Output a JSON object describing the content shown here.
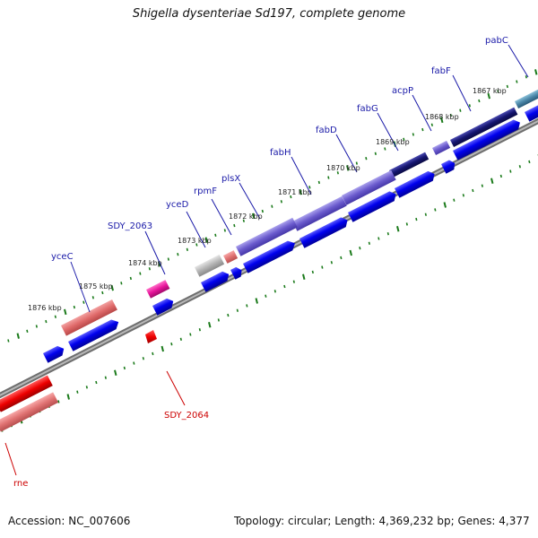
{
  "title": "Shigella dysenteriae Sd197, complete genome",
  "accession": "Accession: NC_007606",
  "summary": "Topology: circular; Length: 4,369,232 bp; Genes: 4,377",
  "scale_ticks": [
    "1867 kbp",
    "1868 kbp",
    "1869 kbp",
    "1870 kbp",
    "1871 kbp",
    "1872 kbp",
    "1873 kbp",
    "1874 kbp",
    "1875 kbp",
    "1876 kbp"
  ],
  "genes": [
    "pabC",
    "fabF",
    "acpP",
    "fabG",
    "fabD",
    "fabH",
    "plsX",
    "rpmF",
    "yceD",
    "SDY_2063",
    "yceC",
    "SDY_2064",
    "rne"
  ],
  "colors": {
    "forward_gene": "#0000ee",
    "reverse_gene": "#ee0000",
    "label_blue": "#1a1aa8",
    "label_red": "#cc0000",
    "tick_green": "#1a7a1a",
    "backbone": "#8c8c8c"
  }
}
